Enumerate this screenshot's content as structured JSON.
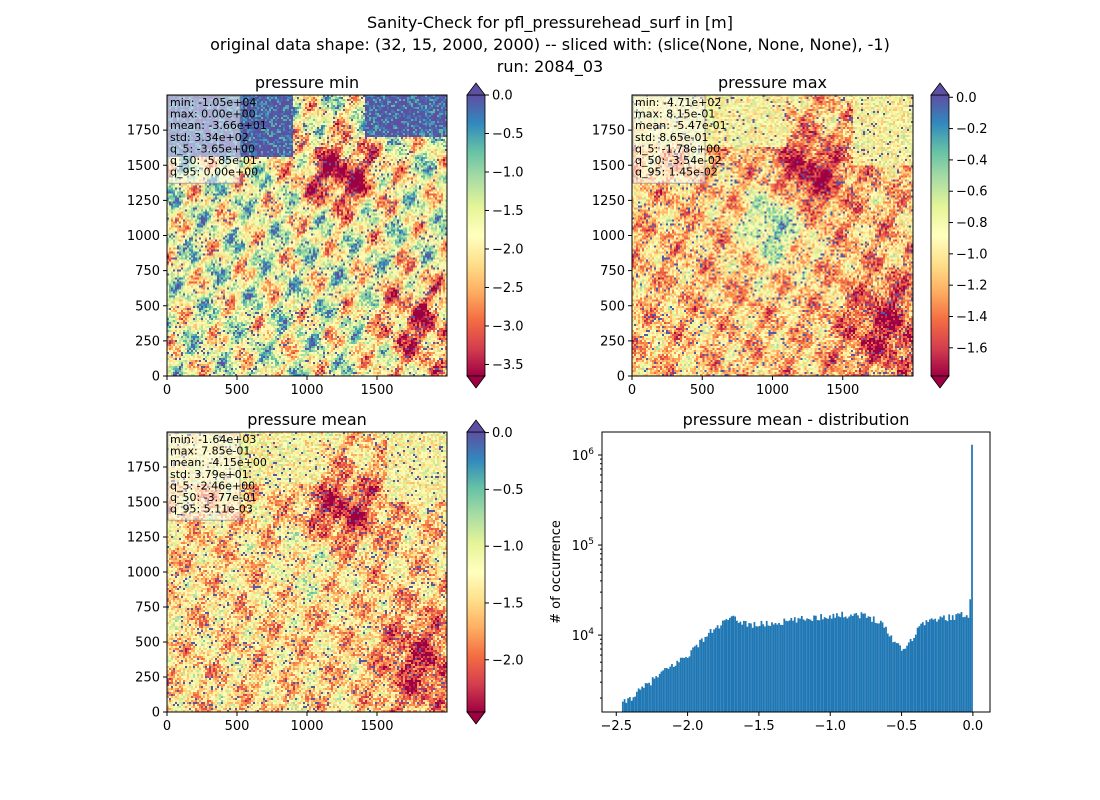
{
  "suptitle": [
    "Sanity-Check for pfl_pressurehead_surf in [m]",
    "original data shape: (32, 15, 2000, 2000) -- sliced with: (slice(None, None, None), -1)",
    "run: 2084_03"
  ],
  "chart_data": [
    {
      "type": "heatmap",
      "title": "pressure min",
      "colormap": "Spectral",
      "x_ticks": [
        "0",
        "500",
        "1000",
        "1500"
      ],
      "y_ticks": [
        "0",
        "250",
        "500",
        "750",
        "1000",
        "1250",
        "1500",
        "1750"
      ],
      "xlim": [
        0,
        2000
      ],
      "ylim": [
        0,
        2000
      ],
      "colorbar": {
        "ticks": [
          "0.0",
          "−0.5",
          "−1.0",
          "−1.5",
          "−2.0",
          "−2.5",
          "−3.0",
          "−3.5"
        ],
        "range": [
          -3.65,
          0.0
        ],
        "extend": "both"
      },
      "stats": [
        "min: -1.05e+04",
        "max: 0.00e+00",
        "mean: -3.66e+01",
        "std: 3.34e+02",
        "q_5: -3.65e+00",
        "q_50: -5.85e-01",
        "q_95: 0.00e+00"
      ]
    },
    {
      "type": "heatmap",
      "title": "pressure max",
      "colormap": "Spectral",
      "x_ticks": [
        "0",
        "500",
        "1000",
        "1500"
      ],
      "y_ticks": [
        "0",
        "250",
        "500",
        "750",
        "1000",
        "1250",
        "1500",
        "1750"
      ],
      "xlim": [
        0,
        2000
      ],
      "ylim": [
        0,
        2000
      ],
      "colorbar": {
        "ticks": [
          "0.0",
          "−0.2",
          "−0.4",
          "−0.6",
          "−0.8",
          "−1.0",
          "−1.2",
          "−1.4",
          "−1.6"
        ],
        "range": [
          -1.78,
          0.0145
        ],
        "extend": "both"
      },
      "stats": [
        "min: -4.71e+02",
        "max: 8.15e-01",
        "mean: -5.47e-01",
        "std: 8.65e-01",
        "q_5: -1.78e+00",
        "q_50: -3.54e-02",
        "q_95: 1.45e-02"
      ]
    },
    {
      "type": "heatmap",
      "title": "pressure mean",
      "colormap": "Spectral",
      "x_ticks": [
        "0",
        "500",
        "1000",
        "1500"
      ],
      "y_ticks": [
        "0",
        "250",
        "500",
        "750",
        "1000",
        "1250",
        "1500",
        "1750"
      ],
      "xlim": [
        0,
        2000
      ],
      "ylim": [
        0,
        2000
      ],
      "colorbar": {
        "ticks": [
          "0.0",
          "−0.5",
          "−1.0",
          "−1.5",
          "−2.0"
        ],
        "range": [
          -2.46,
          0.0051
        ],
        "extend": "both"
      },
      "stats": [
        "min: -1.64e+03",
        "max: 7.85e-01",
        "mean: -4.15e+00",
        "std: 3.79e+01",
        "q_5: -2.46e+00",
        "q_50: -3.77e-01",
        "q_95: 5.11e-03"
      ]
    },
    {
      "type": "bar",
      "title": "pressure mean - distribution",
      "ylabel": "# of occurrence",
      "xlabel": "",
      "yscale": "log",
      "color": "#1f77b4",
      "xlim": [
        -2.6,
        0.12
      ],
      "ylim": [
        1400,
        1800000
      ],
      "x_ticks": [
        -2.5,
        -2.0,
        -1.5,
        -1.0,
        -0.5,
        0.0
      ],
      "x_tick_labels": [
        "−2.5",
        "−2.0",
        "−1.5",
        "−1.0",
        "−0.5",
        "0.0"
      ],
      "y_ticks": [
        10000,
        100000,
        1000000
      ],
      "bin_range": [
        -2.46,
        0.0
      ],
      "bin_count": 200,
      "profile_x": [
        -2.46,
        -2.35,
        -2.2,
        -2.0,
        -1.85,
        -1.7,
        -1.55,
        -1.4,
        -1.2,
        -1.0,
        -0.8,
        -0.65,
        -0.55,
        -0.48,
        -0.42,
        -0.35,
        -0.25,
        -0.1,
        -0.02
      ],
      "profile_y": [
        1700,
        2300,
        3600,
        6000,
        10500,
        15500,
        13000,
        13500,
        15000,
        16500,
        17000,
        14500,
        8500,
        7000,
        9500,
        14000,
        15000,
        16500,
        17000
      ],
      "spike_values": [
        25000,
        1300000
      ]
    }
  ]
}
